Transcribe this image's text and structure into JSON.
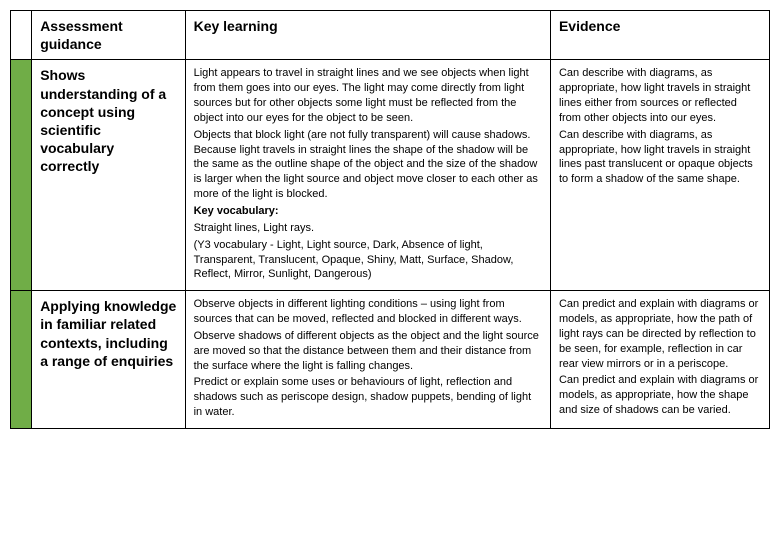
{
  "colors": {
    "header_bar": "#ffffff",
    "row_bar": "#70ad47",
    "border": "#000000",
    "text": "#000000",
    "background": "#ffffff"
  },
  "fonts": {
    "header_size_pt": 14,
    "header_weight": "bold",
    "row_title_size_pt": 14,
    "row_title_weight": "bold",
    "body_size_pt": 11,
    "body_weight": "normal",
    "family": "Arial"
  },
  "headers": {
    "assessment": "Assessment guidance",
    "learning": "Key learning",
    "evidence": "Evidence"
  },
  "rows": [
    {
      "title": "Shows understanding of a concept using scientific vocabulary correctly",
      "learning_p1": "Light appears to travel in straight lines and we see objects when light from them goes into our eyes. The light may come directly from light sources but for other objects some light must be reflected from the object into our eyes for the object to be seen.",
      "learning_p2": "Objects that block light (are not fully transparent) will cause shadows. Because light travels in straight lines the shape of the shadow will be the same as the outline shape of the object and the size of the shadow is larger when the light source and object move closer to each other as more of the light is blocked.",
      "learning_kv_label": "Key vocabulary:",
      "learning_kv1": "Straight lines, Light rays.",
      "learning_kv2": "(Y3 vocabulary - Light, Light source, Dark, Absence of light, Transparent, Translucent, Opaque, Shiny, Matt, Surface, Shadow, Reflect, Mirror, Sunlight, Dangerous)",
      "evidence_p1": "Can describe with diagrams, as appropriate, how light travels in straight lines either from sources or reflected from other objects into our eyes.",
      "evidence_p2": "Can describe with diagrams, as appropriate, how light travels in straight lines past translucent or opaque objects to form a shadow of the same shape."
    },
    {
      "title": "Applying knowledge in familiar related contexts, including a range of enquiries",
      "learning_p1": "Observe objects in different lighting conditions – using light from sources that can be moved, reflected and blocked in different ways.",
      "learning_p2": "Observe shadows of different objects as the object and the light source are moved so that the distance between them and their distance from the surface where the light is falling changes.",
      "learning_p3": "Predict or explain some uses or behaviours of light, reflection and shadows such as periscope design, shadow puppets, bending of light in water.",
      "evidence_p1": "Can predict and explain with diagrams or models, as appropriate, how the path of light rays can be directed by reflection to be seen, for example, reflection in car rear view mirrors or in a periscope.",
      "evidence_p2": "Can predict and explain with diagrams or models, as appropriate, how the shape and size of shadows can be varied."
    }
  ]
}
